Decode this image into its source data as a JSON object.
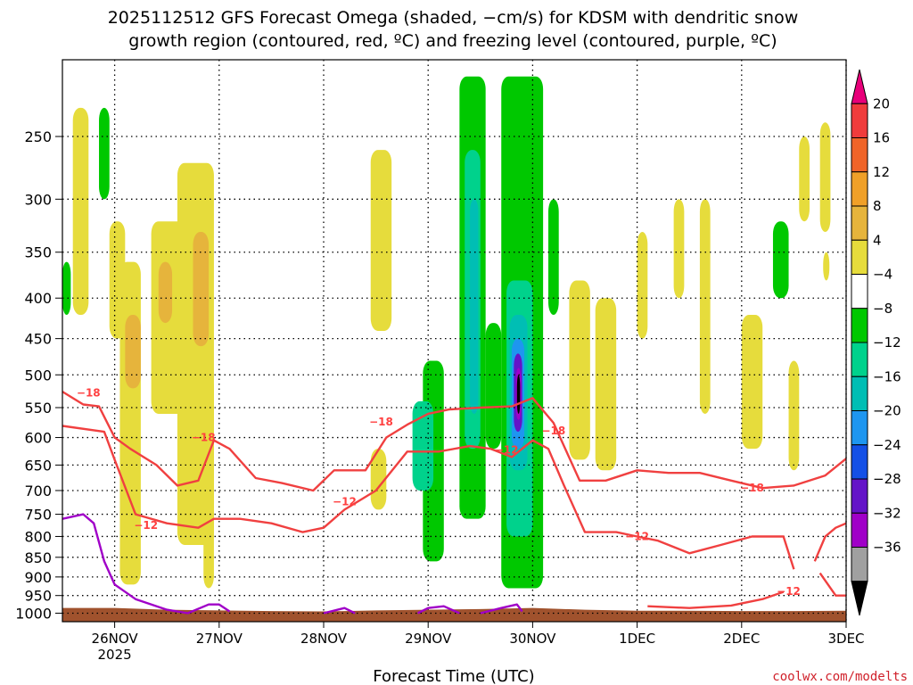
{
  "title_line1": "2025112512 GFS Forecast Omega (shaded, −cm/s) for KDSM with dendritic snow",
  "title_line2": "growth region (contoured, red, ºC) and freezing level (contoured, purple, ºC)",
  "xlabel": "Forecast Time (UTC)",
  "credit": "coolwx.com/modelts",
  "chart_data": {
    "type": "heatmap",
    "title": "2025112512 GFS Forecast Omega (shaded, −cm/s) for KDSM with dendritic snow growth region (contoured, red, ºC) and freezing level (contoured, purple, ºC)",
    "xlabel": "Forecast Time (UTC)",
    "ylabel": "",
    "y_axis": {
      "scale": "log-pressure-inverted",
      "range_hPa": [
        1025,
        200
      ],
      "ticks": [
        250,
        300,
        350,
        400,
        450,
        500,
        550,
        600,
        650,
        700,
        750,
        800,
        850,
        900,
        950,
        1000
      ]
    },
    "x_axis": {
      "range_days": [
        "2025-11-25T12Z",
        "2025-12-03T00Z"
      ],
      "ticks": [
        {
          "label": "26NOV",
          "sub": "2025",
          "day": 26
        },
        {
          "label": "27NOV",
          "sub": "",
          "day": 27
        },
        {
          "label": "28NOV",
          "sub": "",
          "day": 28
        },
        {
          "label": "29NOV",
          "sub": "",
          "day": 29
        },
        {
          "label": "30NOV",
          "sub": "",
          "day": 30
        },
        {
          "label": "1DEC",
          "sub": "",
          "day": 31
        },
        {
          "label": "2DEC",
          "sub": "",
          "day": 32
        },
        {
          "label": "3DEC",
          "sub": "",
          "day": 33
        }
      ]
    },
    "grid": true,
    "colorbar": {
      "labels": [
        "20",
        "16",
        "12",
        "8",
        "4",
        "−4",
        "−8",
        "−12",
        "−16",
        "−20",
        "−24",
        "−28",
        "−32",
        "−36"
      ],
      "colors": [
        "#e8007a",
        "#f03c3c",
        "#f06428",
        "#f0a028",
        "#e6b43c",
        "#e6dc3c",
        "#ffffff",
        "#00c800",
        "#00d28c",
        "#00beb4",
        "#1e96f0",
        "#1450e6",
        "#6414c8",
        "#a000c8",
        "#a0a0a0",
        "#000000"
      ],
      "omega_color_map": {
        "4": "#e6dc3c",
        "8": "#e6b43c",
        "12": "#f0a028",
        "-4": "#00c800",
        "-8": "#00d28c",
        "-12": "#00beb4",
        "-16": "#1e96f0",
        "-20": "#1450e6",
        "-24": "#6414c8",
        "-28": "#a000c8",
        "-32": "#a0a0a0",
        "-36": "#000000"
      }
    },
    "omega_cells": [
      {
        "t": [
          25.6,
          25.75
        ],
        "p": [
          230,
          420
        ],
        "v": 4
      },
      {
        "t": [
          25.95,
          26.1
        ],
        "p": [
          320,
          450
        ],
        "v": 4
      },
      {
        "t": [
          26.05,
          26.25
        ],
        "p": [
          360,
          920
        ],
        "v": 4
      },
      {
        "t": [
          26.1,
          26.25
        ],
        "p": [
          420,
          520
        ],
        "v": 8
      },
      {
        "t": [
          26.35,
          26.7
        ],
        "p": [
          320,
          560
        ],
        "v": 4
      },
      {
        "t": [
          26.42,
          26.55
        ],
        "p": [
          360,
          430
        ],
        "v": 8
      },
      {
        "t": [
          26.6,
          26.95
        ],
        "p": [
          270,
          820
        ],
        "v": 4
      },
      {
        "t": [
          26.75,
          26.9
        ],
        "p": [
          330,
          460
        ],
        "v": 8
      },
      {
        "t": [
          26.85,
          26.95
        ],
        "p": [
          500,
          930
        ],
        "v": 4
      },
      {
        "t": [
          25.85,
          25.95
        ],
        "p": [
          230,
          300
        ],
        "v": -4
      },
      {
        "t": [
          25.5,
          25.58
        ],
        "p": [
          360,
          420
        ],
        "v": -4
      },
      {
        "t": [
          28.45,
          28.65
        ],
        "p": [
          260,
          440
        ],
        "v": 4
      },
      {
        "t": [
          28.45,
          28.6
        ],
        "p": [
          620,
          740
        ],
        "v": 4
      },
      {
        "t": [
          28.95,
          29.15
        ],
        "p": [
          480,
          860
        ],
        "v": -4
      },
      {
        "t": [
          28.85,
          29.05
        ],
        "p": [
          540,
          700
        ],
        "v": -8
      },
      {
        "t": [
          29.3,
          29.55
        ],
        "p": [
          210,
          760
        ],
        "v": -4
      },
      {
        "t": [
          29.35,
          29.5
        ],
        "p": [
          260,
          620
        ],
        "v": -8
      },
      {
        "t": [
          29.4,
          29.48
        ],
        "p": [
          300,
          560
        ],
        "v": -12
      },
      {
        "t": [
          29.55,
          29.7
        ],
        "p": [
          430,
          620
        ],
        "v": -4
      },
      {
        "t": [
          29.7,
          30.1
        ],
        "p": [
          210,
          930
        ],
        "v": -4
      },
      {
        "t": [
          29.75,
          30.0
        ],
        "p": [
          380,
          800
        ],
        "v": -8
      },
      {
        "t": [
          29.78,
          29.95
        ],
        "p": [
          420,
          660
        ],
        "v": -12
      },
      {
        "t": [
          29.8,
          29.92
        ],
        "p": [
          450,
          620
        ],
        "v": -16
      },
      {
        "t": [
          29.82,
          29.9
        ],
        "p": [
          470,
          590
        ],
        "v": -24
      },
      {
        "t": [
          29.84,
          29.89
        ],
        "p": [
          490,
          570
        ],
        "v": -28
      },
      {
        "t": [
          29.85,
          29.88
        ],
        "p": [
          500,
          560
        ],
        "v": -36
      },
      {
        "t": [
          30.15,
          30.25
        ],
        "p": [
          300,
          420
        ],
        "v": -4
      },
      {
        "t": [
          30.35,
          30.55
        ],
        "p": [
          380,
          640
        ],
        "v": 4
      },
      {
        "t": [
          30.6,
          30.8
        ],
        "p": [
          400,
          660
        ],
        "v": 4
      },
      {
        "t": [
          31.0,
          31.1
        ],
        "p": [
          330,
          450
        ],
        "v": 4
      },
      {
        "t": [
          31.35,
          31.45
        ],
        "p": [
          300,
          400
        ],
        "v": 4
      },
      {
        "t": [
          31.6,
          31.7
        ],
        "p": [
          300,
          560
        ],
        "v": 4
      },
      {
        "t": [
          32.0,
          32.2
        ],
        "p": [
          420,
          620
        ],
        "v": 4
      },
      {
        "t": [
          32.3,
          32.45
        ],
        "p": [
          320,
          400
        ],
        "v": -4
      },
      {
        "t": [
          32.45,
          32.55
        ],
        "p": [
          480,
          660
        ],
        "v": 4
      },
      {
        "t": [
          32.55,
          32.65
        ],
        "p": [
          250,
          320
        ],
        "v": 4
      },
      {
        "t": [
          32.75,
          32.85
        ],
        "p": [
          240,
          330
        ],
        "v": 4
      },
      {
        "t": [
          32.78,
          32.84
        ],
        "p": [
          350,
          380
        ],
        "v": 4
      }
    ],
    "contours": [
      {
        "name": "-18",
        "color": "#f04040",
        "t": [
          25.5,
          25.7,
          25.85,
          26.0,
          26.15,
          26.4,
          26.6,
          26.8,
          26.95,
          27.1,
          27.35,
          27.6,
          27.9,
          28.1,
          28.4,
          28.6,
          28.8,
          29.0,
          29.2,
          29.5,
          29.8,
          30.0,
          30.2,
          30.45,
          30.7,
          31.0,
          31.3,
          31.6,
          31.9,
          32.2,
          32.5,
          32.8,
          33.0
        ],
        "p": [
          525,
          545,
          548,
          600,
          620,
          650,
          690,
          680,
          605,
          620,
          675,
          685,
          700,
          660,
          660,
          600,
          578,
          560,
          553,
          550,
          548,
          535,
          575,
          680,
          680,
          660,
          665,
          665,
          680,
          695,
          690,
          670,
          638
        ],
        "labels": [
          {
            "t": 25.75,
            "p": 527,
            "text": "−18"
          },
          {
            "t": 26.85,
            "p": 600,
            "text": "−18"
          },
          {
            "t": 28.55,
            "p": 573,
            "text": "−18"
          },
          {
            "t": 30.2,
            "p": 588,
            "text": "−18"
          },
          {
            "t": 32.1,
            "p": 695,
            "text": "−18"
          }
        ]
      },
      {
        "name": "-12",
        "color": "#f04040",
        "t": [
          25.5,
          25.9,
          26.0,
          26.2,
          26.5,
          26.8,
          26.95,
          27.2,
          27.5,
          27.8,
          28.0,
          28.2,
          28.5,
          28.8,
          29.1,
          29.4,
          29.6,
          29.8,
          30.0,
          30.15,
          30.3,
          30.5,
          30.8,
          31.0,
          31.2,
          31.5,
          31.8,
          32.1,
          32.4,
          32.5
        ],
        "p": [
          580,
          590,
          640,
          750,
          770,
          780,
          760,
          760,
          770,
          790,
          780,
          740,
          700,
          625,
          625,
          615,
          620,
          635,
          605,
          620,
          690,
          790,
          790,
          800,
          810,
          840,
          820,
          800,
          800,
          880
        ],
        "labels": [
          {
            "t": 26.3,
            "p": 775,
            "text": "−12"
          },
          {
            "t": 28.2,
            "p": 723,
            "text": "−12"
          },
          {
            "t": 29.75,
            "p": 622,
            "text": "−12"
          },
          {
            "t": 31.0,
            "p": 800,
            "text": "−12"
          },
          {
            "t": 32.45,
            "p": 938,
            "text": "−12"
          }
        ]
      },
      {
        "name": "-12b",
        "color": "#f04040",
        "t": [
          31.1,
          31.5,
          31.9,
          32.2,
          32.4
        ],
        "p": [
          980,
          985,
          978,
          960,
          940
        ],
        "labels": []
      },
      {
        "name": "-12c",
        "color": "#f04040",
        "t": [
          32.7,
          32.8,
          32.9,
          33.0
        ],
        "p": [
          860,
          800,
          780,
          770
        ],
        "labels": []
      },
      {
        "name": "-12d",
        "color": "#f04040",
        "t": [
          32.75,
          32.9,
          33.0
        ],
        "p": [
          890,
          950,
          950
        ],
        "labels": []
      },
      {
        "name": "0",
        "color": "#a000c8",
        "t": [
          25.5,
          25.7,
          25.8,
          25.9,
          26.0,
          26.2,
          26.5,
          26.7,
          26.9,
          27.0,
          27.1
        ],
        "p": [
          760,
          750,
          770,
          860,
          920,
          960,
          990,
          1000,
          975,
          975,
          995
        ],
        "labels": []
      },
      {
        "name": "0b",
        "color": "#a000c8",
        "t": [
          28.0,
          28.2,
          28.3
        ],
        "p": [
          1000,
          985,
          1000
        ],
        "labels": []
      },
      {
        "name": "0c",
        "color": "#a000c8",
        "t": [
          28.9,
          29.0,
          29.15,
          29.3
        ],
        "p": [
          1000,
          985,
          980,
          1000
        ],
        "labels": []
      },
      {
        "name": "0d",
        "color": "#a000c8",
        "t": [
          29.5,
          29.7,
          29.85,
          29.9
        ],
        "p": [
          1000,
          985,
          975,
          995
        ],
        "labels": []
      }
    ],
    "terrain": {
      "color": "#a0522d",
      "t": [
        25.5,
        26.0,
        26.5,
        27.0,
        27.5,
        28.0,
        28.5,
        29.0,
        29.5,
        30.0,
        30.5,
        31.0,
        31.5,
        32.0,
        32.5,
        33.0
      ],
      "p": [
        985,
        985,
        990,
        992,
        994,
        995,
        992,
        990,
        988,
        985,
        990,
        993,
        993,
        994,
        994,
        993
      ]
    }
  }
}
